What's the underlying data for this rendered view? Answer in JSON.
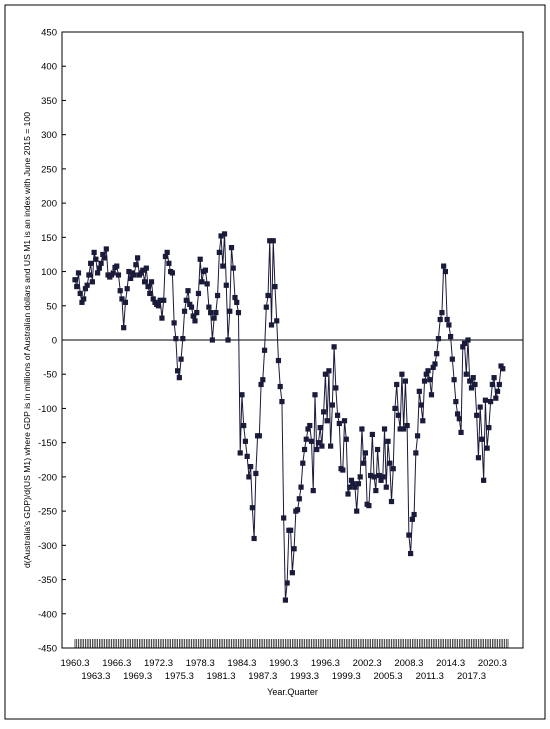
{
  "chart_data": {
    "type": "line",
    "title": "",
    "xlabel": "Year.Quarter",
    "ylabel": "d(Australia's GDP)/d(US M1) where GDP is in millions of Australian dollars and US M1 is an index with June 2015 = 100",
    "ylim": [
      -450,
      450
    ],
    "yticks": [
      450,
      400,
      350,
      300,
      250,
      200,
      150,
      100,
      50,
      0,
      -50,
      -100,
      -150,
      -200,
      -250,
      -300,
      -350,
      -400,
      -450
    ],
    "x_start": "1960.3",
    "x_end": "2022.4",
    "xtick_labels_upper": [
      "1960.3",
      "1966.3",
      "1972.3",
      "1978.3",
      "1984.3",
      "1990.3",
      "1996.3",
      "2002.3",
      "2008.3",
      "2014.3",
      "2020.3"
    ],
    "xtick_labels_lower": [
      "1963.3",
      "1969.3",
      "1975.3",
      "1981.3",
      "1987.3",
      "1993.3",
      "1999.3",
      "2005.3",
      "2011.3",
      "2017.3"
    ],
    "zero_line": true,
    "grid": false,
    "marker": "square",
    "series_color": "#1a1a3a",
    "series": [
      {
        "values": [
          88,
          78,
          98,
          68,
          55,
          60,
          75,
          80,
          95,
          112,
          85,
          128,
          118,
          98,
          105,
          112,
          125,
          120,
          133,
          95,
          92,
          95,
          98,
          106,
          108,
          95,
          72,
          60,
          18,
          55,
          75,
          100,
          90,
          98,
          95,
          110,
          120,
          95,
          98,
          102,
          85,
          105,
          78,
          68,
          85,
          60,
          55,
          52,
          50,
          58,
          32,
          58,
          122,
          128,
          112,
          100,
          98,
          25,
          2,
          -45,
          -55,
          -28,
          2,
          42,
          58,
          72,
          52,
          48,
          35,
          28,
          40,
          68,
          118,
          85,
          100,
          102,
          82,
          48,
          40,
          0,
          32,
          40,
          65,
          128,
          152,
          108,
          155,
          80,
          0,
          42,
          135,
          105,
          62,
          55,
          40,
          -165,
          -80,
          -125,
          -148,
          -170,
          -200,
          -185,
          -245,
          -290,
          -195,
          -140,
          -140,
          -65,
          -58,
          -15,
          48,
          65,
          145,
          22,
          145,
          78,
          28,
          -30,
          -68,
          -90,
          -260,
          -380,
          -355,
          -278,
          -278,
          -340,
          -305,
          -250,
          -248,
          -232,
          -215,
          -180,
          -160,
          -145,
          -130,
          -125,
          -148,
          -220,
          -80,
          -160,
          -150,
          -128,
          -155,
          -105,
          -50,
          -118,
          -45,
          -155,
          -95,
          -10,
          -70,
          -110,
          -122,
          -188,
          -190,
          -118,
          -145,
          -225,
          -215,
          -205,
          -210,
          -215,
          -250,
          -210,
          -200,
          -130,
          -180,
          -165,
          -240,
          -242,
          -198,
          -138,
          -200,
          -220,
          -160,
          -198,
          -205,
          -200,
          -130,
          -215,
          -148,
          -180,
          -236,
          -188,
          -100,
          -65,
          -110,
          -130,
          -50,
          -130,
          -60,
          -125,
          -285,
          -312,
          -262,
          -255,
          -165,
          -140,
          -75,
          -95,
          -118,
          -60,
          -50,
          -45,
          -58,
          -80,
          -40,
          -35,
          -20,
          2,
          30,
          40,
          108,
          100,
          30,
          22,
          5,
          -28,
          -58,
          -90,
          -108,
          -115,
          -135,
          -10,
          -5,
          -50,
          0,
          -60,
          -70,
          -55,
          -65,
          -110,
          -172,
          -98,
          -145,
          -205,
          -88,
          -158,
          -128,
          -90,
          -65,
          -55,
          -85,
          -75,
          -65,
          -38,
          -42
        ]
      }
    ]
  }
}
